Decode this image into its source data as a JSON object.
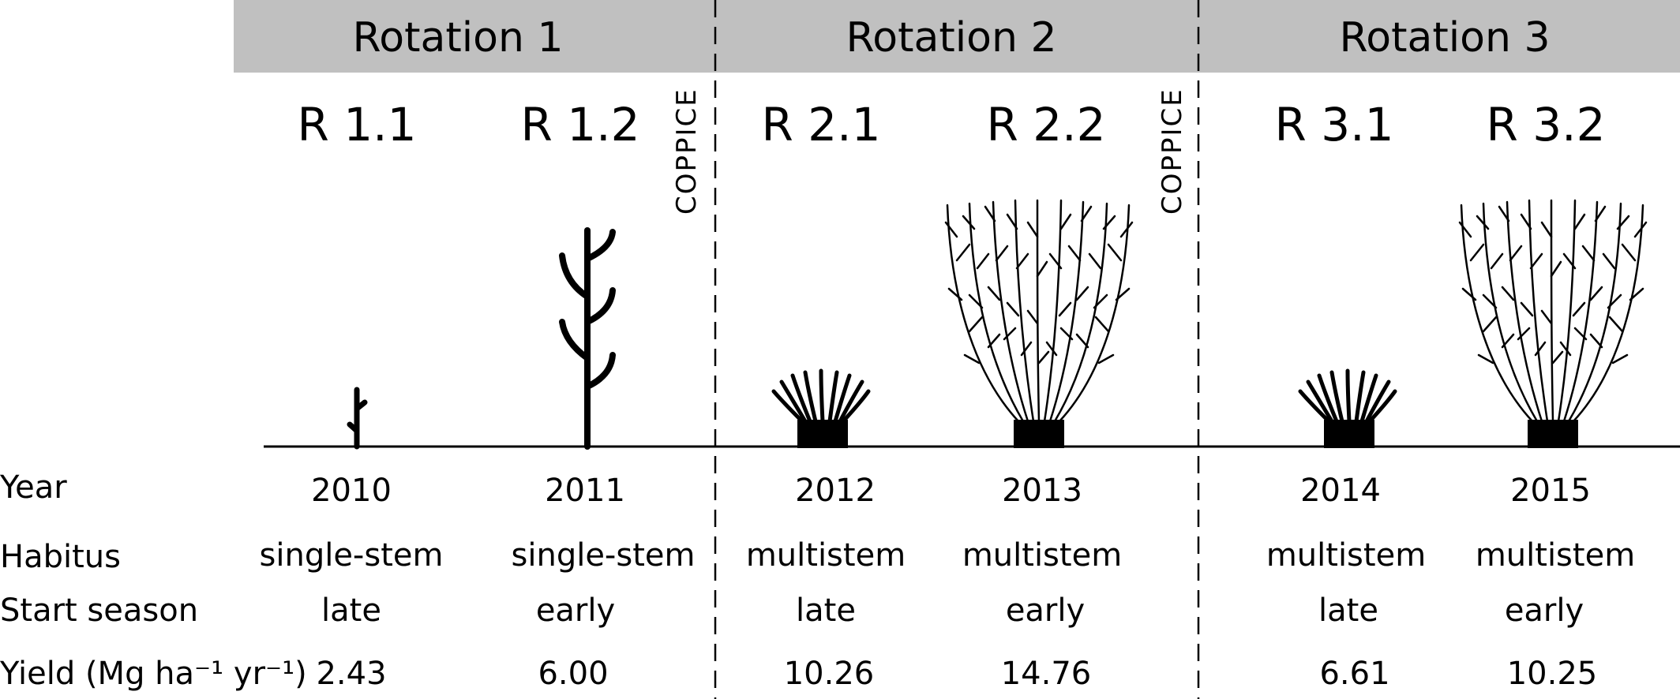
{
  "rotations": [
    {
      "title": "Rotation 1"
    },
    {
      "title": "Rotation 2"
    },
    {
      "title": "Rotation 3"
    }
  ],
  "coppice_label": "COPPICE",
  "columns": [
    {
      "code": "R 1.1",
      "year": "2010",
      "habitus": "single-stem",
      "season": "late",
      "yield": "2.43",
      "plant": "small-seedling"
    },
    {
      "code": "R 1.2",
      "year": "2011",
      "habitus": "single-stem",
      "season": "early",
      "yield": "6.00",
      "plant": "single-stem-tree"
    },
    {
      "code": "R 2.1",
      "year": "2012",
      "habitus": "multistem",
      "season": "late",
      "yield": "10.26",
      "plant": "small-coppice-stool"
    },
    {
      "code": "R 2.2",
      "year": "2013",
      "habitus": "multistem",
      "season": "early",
      "yield": "14.76",
      "plant": "large-coppice-bush"
    },
    {
      "code": "R 3.1",
      "year": "2014",
      "habitus": "multistem",
      "season": "late",
      "yield": "6.61",
      "plant": "small-coppice-stool"
    },
    {
      "code": "R 3.2",
      "year": "2015",
      "habitus": "multistem",
      "season": "early",
      "yield": "10.25",
      "plant": "large-coppice-bush"
    }
  ],
  "row_labels": {
    "year": "Year",
    "habitus": "Habitus",
    "season": "Start season",
    "yield": "Yield (Mg ha⁻¹ yr⁻¹)"
  },
  "colors": {
    "header_bar": "#c0c0c0",
    "ink": "#000000"
  }
}
